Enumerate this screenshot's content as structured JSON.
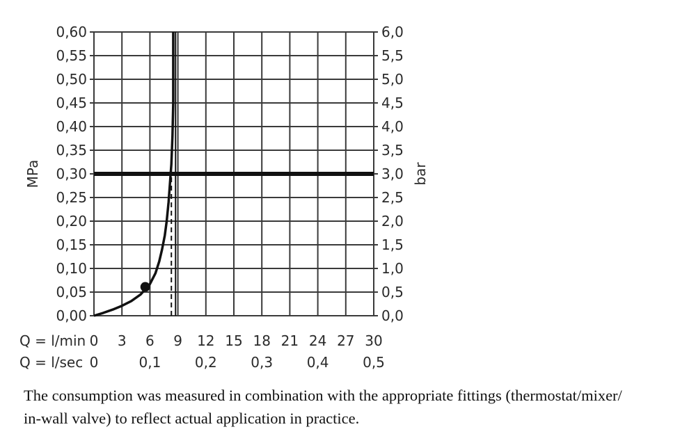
{
  "chart_data": {
    "type": "line",
    "y_left": {
      "label": "MPa",
      "range": [
        0,
        0.6
      ],
      "ticks": [
        "0,00",
        "0,05",
        "0,10",
        "0,15",
        "0,20",
        "0,25",
        "0,30",
        "0,35",
        "0,40",
        "0,45",
        "0,50",
        "0,55",
        "0,60"
      ]
    },
    "y_right": {
      "label": "bar",
      "range": [
        0,
        6
      ],
      "ticks": [
        "0,0",
        "0,5",
        "1,0",
        "1,5",
        "2,0",
        "2,5",
        "3,0",
        "3,5",
        "4,0",
        "4,5",
        "5,0",
        "5,5",
        "6,0"
      ]
    },
    "x_primary": {
      "label": "Q = l/min",
      "range": [
        0,
        30
      ],
      "ticks": [
        "0",
        "3",
        "6",
        "9",
        "12",
        "15",
        "18",
        "21",
        "24",
        "27",
        "30"
      ]
    },
    "x_secondary": {
      "label": "Q = l/sec",
      "ticks": [
        {
          "at": 0,
          "text": "0"
        },
        {
          "at": 6,
          "text": "0,1"
        },
        {
          "at": 12,
          "text": "0,2"
        },
        {
          "at": 18,
          "text": "0,3"
        },
        {
          "at": 24,
          "text": "0,4"
        },
        {
          "at": 30,
          "text": "0,5"
        }
      ]
    },
    "grid": true,
    "series": [
      {
        "x": [
          0,
          1,
          2,
          3,
          4,
          5,
          5.5,
          6,
          6.6,
          7,
          7.3,
          7.6,
          7.8,
          8,
          8.15,
          8.3,
          8.42,
          8.5,
          8.5
        ],
        "y": [
          0,
          0.006,
          0.013,
          0.021,
          0.031,
          0.045,
          0.056,
          0.067,
          0.09,
          0.115,
          0.14,
          0.17,
          0.2,
          0.24,
          0.28,
          0.32,
          0.38,
          0.45,
          0.6
        ]
      }
    ],
    "marker_point": {
      "x": 5.5,
      "y": 0.061
    },
    "reference_line": {
      "y": 0.3
    },
    "dashed_line": {
      "x": 8.3,
      "y_from": 0,
      "y_to": 0.3
    },
    "vertical_line": {
      "x": 8.75
    }
  },
  "footnote": {
    "line1": "The consumption was measured in combination with the appropriate fittings (thermostat/mixer/",
    "line2": "in-wall valve) to reflect actual application in practice."
  }
}
